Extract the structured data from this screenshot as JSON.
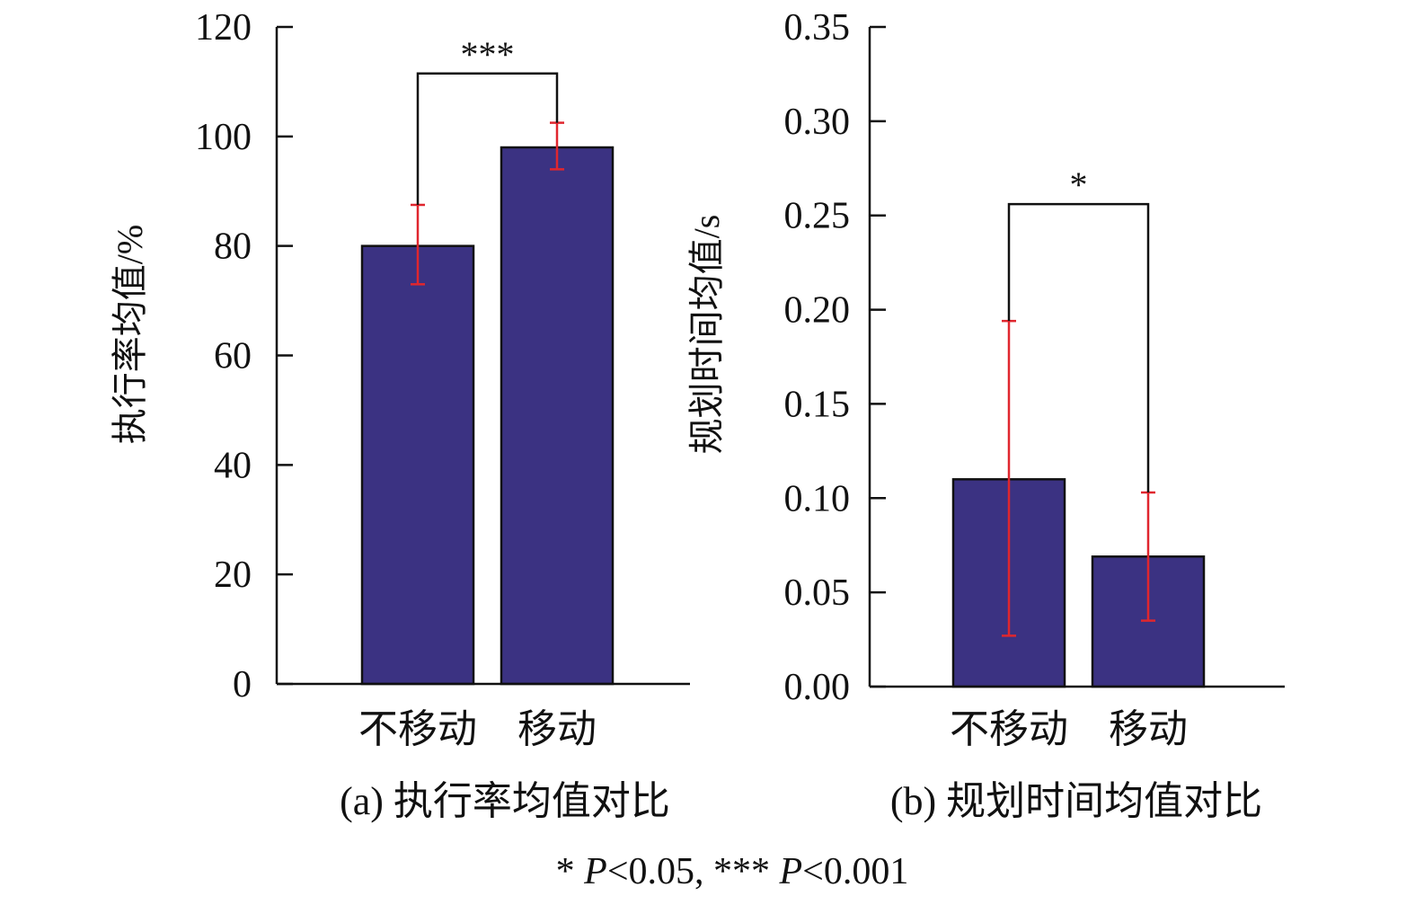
{
  "chart_data": [
    {
      "type": "bar",
      "panel": "a",
      "title": "(a) 执行率均值对比",
      "xlabel": "",
      "ylabel": "执行率均值/%",
      "categories": [
        "不移动",
        "移动"
      ],
      "values": [
        80,
        98
      ],
      "error_low": [
        73,
        94
      ],
      "error_high": [
        87.5,
        102.5
      ],
      "ylim": [
        0,
        120
      ],
      "yticks": [
        0,
        20,
        40,
        60,
        80,
        100,
        120
      ],
      "ytick_labels": [
        "0",
        "20",
        "40",
        "60",
        "80",
        "100",
        "120"
      ],
      "significance": {
        "label": "***",
        "bracket_value": 111.5
      },
      "bar_color": "#3b3282",
      "error_color": "#e0262e",
      "grid": false
    },
    {
      "type": "bar",
      "panel": "b",
      "title": "(b) 规划时间均值对比",
      "xlabel": "",
      "ylabel": "规划时间均值/s",
      "categories": [
        "不移动",
        "移动"
      ],
      "values": [
        0.11,
        0.069
      ],
      "error_low": [
        0.027,
        0.035
      ],
      "error_high": [
        0.194,
        0.103
      ],
      "ylim": [
        0,
        0.35
      ],
      "yticks": [
        0,
        0.05,
        0.1,
        0.15,
        0.2,
        0.25,
        0.3,
        0.35
      ],
      "ytick_labels": [
        "0.00",
        "0.05",
        "0.10",
        "0.15",
        "0.20",
        "0.25",
        "0.30",
        "0.35"
      ],
      "significance": {
        "label": "*",
        "bracket_value": 0.256
      },
      "bar_color": "#3b3282",
      "error_color": "#e0262e",
      "grid": false
    }
  ],
  "footnote": {
    "part1": "* ",
    "p1": "P",
    "part2": "<0.05, *** ",
    "p2": "P",
    "part3": "<0.001"
  }
}
